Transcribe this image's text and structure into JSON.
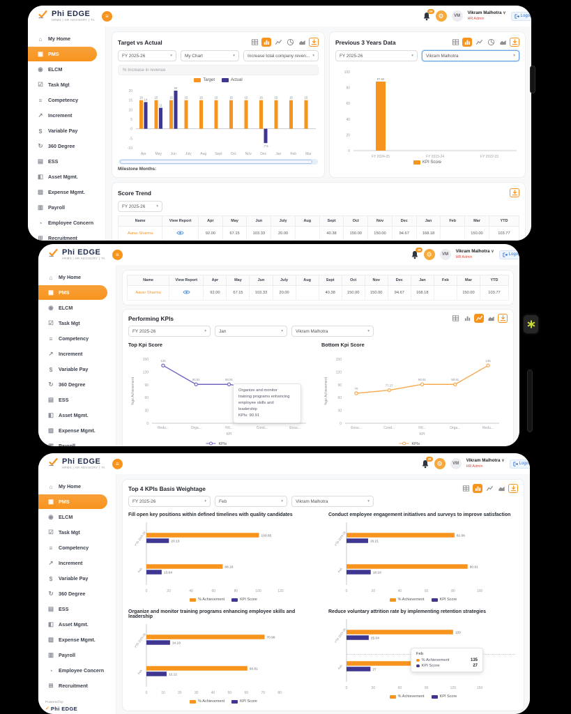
{
  "brand": {
    "name": "Phi EDGE",
    "tagline": "HRMS | HR ADVISORY | TA"
  },
  "header": {
    "notification_count": "29",
    "avatar_initials": "VM",
    "user_name": "Vikram Malhotra",
    "user_role": "HR Admin",
    "logout_label": "Logout"
  },
  "sidebar": {
    "powered_by": "Powered by:",
    "items": [
      {
        "label": "My Home",
        "icon": "home",
        "active": false
      },
      {
        "label": "PMS",
        "icon": "pms",
        "active": true
      },
      {
        "label": "ELCM",
        "icon": "elcm",
        "active": false
      },
      {
        "label": "Task Mgt",
        "icon": "task",
        "active": false
      },
      {
        "label": "Competency",
        "icon": "competency",
        "active": false
      },
      {
        "label": "Increment",
        "icon": "increment",
        "active": false
      },
      {
        "label": "Variable Pay",
        "icon": "variable-pay",
        "active": false
      },
      {
        "label": "360 Degree",
        "icon": "degree-360",
        "active": false
      },
      {
        "label": "ESS",
        "icon": "ess",
        "active": false
      },
      {
        "label": "Asset Mgmt.",
        "icon": "asset",
        "active": false
      },
      {
        "label": "Expense Mgmt.",
        "icon": "expense",
        "active": false
      },
      {
        "label": "Payroll",
        "icon": "payroll",
        "active": false
      },
      {
        "label": "Employee Concern",
        "icon": "concern",
        "active": false
      },
      {
        "label": "Recruitment",
        "icon": "recruitment",
        "active": false
      }
    ]
  },
  "toolbars": {
    "target": [
      "table",
      "bar*",
      "line",
      "pie",
      "area",
      "download!"
    ],
    "previous": [
      "table",
      "bar*",
      "line",
      "pie",
      "area",
      "download!"
    ],
    "performing": [
      "table",
      "bar",
      "line*",
      "area",
      "download!"
    ],
    "weightage": [
      "table",
      "bar*",
      "line",
      "area",
      "download!"
    ],
    "score_trend": [
      "download!"
    ]
  },
  "cards": {
    "target": {
      "title": "Target vs Actual",
      "fy_filter": "FY 2025-26",
      "chart_filter": "My Chart",
      "kpi_filter": "Increase total company reven...",
      "kpi_input": "% Increase in revenue",
      "milestone_label": "Milestone Months:",
      "legend": {
        "target": "Target",
        "actual": "Actual"
      }
    },
    "previous": {
      "title": "Previous 3 Years Data",
      "fy_filter": "FY 2025-26",
      "employee_filter": "Vikram Malhotra",
      "legend": {
        "kpi_score": "KPI Score"
      }
    },
    "score_trend": {
      "title": "Score Trend",
      "fy_filter": "FY 2025-26"
    },
    "performing": {
      "title": "Performing KPIs",
      "fy_filter": "FY 2025-26",
      "month_filter": "Jan",
      "employee_filter": "Vikram Malhotra",
      "top_title": "Top Kpi Score",
      "bottom_title": "Bottom Kpi Score",
      "tooltip": {
        "line1": "Organize and monitor",
        "line2": "training programs enhancing",
        "line3": "employee skills and",
        "line4": "leadership",
        "line5": "KPIs: 90.91"
      }
    },
    "weightage": {
      "title": "Top 4 KPIs Basis Weightage",
      "fy_filter": "FY 2025-26",
      "month_filter": "Feb",
      "employee_filter": "Vikram Malhotra",
      "tooltip": {
        "title": "Feb",
        "row1_label": "% Achievement",
        "row1_value": "135",
        "row2_label": "KPI Score",
        "row2_value": "27"
      },
      "legend": {
        "achievement": "% Achievement",
        "kpi_score": "KPI Score"
      }
    }
  },
  "table": {
    "headers": [
      "Name",
      "View Report",
      "Apr",
      "May",
      "Jun",
      "July",
      "Aug",
      "Sept",
      "Oct",
      "Nov",
      "Dec",
      "Jan",
      "Feb",
      "Mar",
      "YTD"
    ],
    "rows": [
      {
        "name": "Aarav Sharma",
        "values": [
          "92.00",
          "67.15",
          "103.33",
          "20.00",
          "",
          "40.38",
          "150.00",
          "150.00",
          "94.67",
          "168.18",
          "",
          "150.00",
          "103.77"
        ]
      }
    ]
  },
  "colors": {
    "orange": "#F7941D",
    "indigo": "#3E3691",
    "purple_line": "#6F67BE",
    "orange_line": "#F8A84C",
    "role_red": "#E5493D"
  },
  "chart_data": [
    {
      "id": "target_vs_actual",
      "type": "bar",
      "title": "Target vs Actual",
      "categories": [
        "Apr",
        "May",
        "Jun",
        "July",
        "Aug",
        "Sept",
        "Oct",
        "Nov",
        "Dec",
        "Jan",
        "Feb",
        "Mar"
      ],
      "series": [
        {
          "name": "Target",
          "color": "#F7941D",
          "values": [
            15,
            15,
            15,
            15,
            15,
            15,
            15,
            15,
            15,
            15,
            15,
            15
          ]
        },
        {
          "name": "Actual",
          "color": "#3E3691",
          "values": [
            14,
            11,
            20,
            null,
            null,
            null,
            null,
            null,
            -7.5,
            null,
            null,
            null
          ]
        }
      ],
      "ylim": [
        -10,
        20
      ],
      "yticks": [
        -10,
        -5,
        0,
        5,
        10,
        15,
        20
      ],
      "legend_position": "top",
      "grid": false
    },
    {
      "id": "previous_3_years",
      "type": "bar",
      "title": "Previous 3 Years Data",
      "categories": [
        "FY 2024-25",
        "FY 2023-24",
        "FY 2022-23"
      ],
      "series": [
        {
          "name": "KPI Score",
          "color": "#F7941D",
          "values": [
            87.62,
            null,
            null
          ]
        }
      ],
      "ylim": [
        0,
        100
      ],
      "yticks": [
        0,
        20,
        40,
        60,
        80,
        100
      ],
      "legend_position": "bottom",
      "grid": false
    },
    {
      "id": "top_kpi_score",
      "type": "line",
      "title": "Top Kpi Score",
      "color": "#6F67BE",
      "x": [
        "Redu...",
        "Orga...",
        "Fill...",
        "Cond...",
        "Ensu..."
      ],
      "values": [
        135,
        90.91,
        90.91,
        77.27,
        70
      ],
      "labels": [
        "135",
        "90.91",
        "90.91",
        "77.27",
        "70"
      ],
      "ylim": [
        0,
        150
      ],
      "yticks": [
        0,
        30,
        60,
        90,
        120,
        150
      ],
      "ylabel": "%ge Achievement",
      "xlabel": "KPI",
      "legend": "KPIs",
      "legend_position": "bottom"
    },
    {
      "id": "bottom_kpi_score",
      "type": "line",
      "title": "Bottom Kpi Score",
      "color": "#F8A84C",
      "x": [
        "Ensu...",
        "Cond...",
        "Fill...",
        "Orga...",
        "Redu..."
      ],
      "values": [
        70,
        77.27,
        90.91,
        90.91,
        135
      ],
      "labels": [
        "70",
        "77.27",
        "90.91",
        "90.91",
        "135"
      ],
      "ylim": [
        0,
        150
      ],
      "yticks": [
        0,
        30,
        60,
        90,
        120,
        150
      ],
      "ylabel": "%ge Achievement",
      "xlabel": "KPI",
      "legend": "KPIs",
      "legend_position": "bottom"
    },
    {
      "id": "kpi_fill",
      "type": "hbar",
      "title": "Fill open key positions within defined timelines with quality candidates",
      "categories": [
        "YTD 2025-26",
        "Feb"
      ],
      "series": [
        {
          "name": "% Achievement",
          "color": "#F7941D",
          "values": [
            100.65,
            68.18
          ],
          "labels": [
            "100.65",
            "68.18"
          ]
        },
        {
          "name": "KPI Score",
          "color": "#3E3691",
          "values": [
            20.13,
            13.64
          ],
          "labels": [
            "20.13",
            "13.64"
          ]
        }
      ],
      "xticks": [
        0,
        20,
        40,
        60,
        80,
        100,
        120
      ],
      "xmax": 134,
      "legend_position": "bottom"
    },
    {
      "id": "kpi_engagement",
      "type": "hbar",
      "title": "Conduct employee engagement initiatives and surveys to improve satisfaction",
      "categories": [
        "YTD 2025-26",
        "Feb"
      ],
      "series": [
        {
          "name": "% Achievement",
          "color": "#F7941D",
          "values": [
            81.06,
            90.91
          ],
          "labels": [
            "81.06",
            "90.91"
          ]
        },
        {
          "name": "KPI Score",
          "color": "#3E3691",
          "values": [
            16.21,
            18.18
          ],
          "labels": [
            "16.21",
            "18.18"
          ]
        }
      ],
      "xticks": [
        0,
        20,
        40,
        60,
        80,
        100
      ],
      "xmax": 112,
      "legend_position": "bottom"
    },
    {
      "id": "kpi_training",
      "type": "hbar",
      "title": "Organize and monitor training programs enhancing employee skills and leadership",
      "categories": [
        "YTD 2025-26",
        "Feb"
      ],
      "series": [
        {
          "name": "% Achievement",
          "color": "#F7941D",
          "values": [
            70.96,
            60.61
          ],
          "labels": [
            "70.96",
            "60.61"
          ]
        },
        {
          "name": "KPI Score",
          "color": "#3E3691",
          "values": [
            14.19,
            12.12
          ],
          "labels": [
            "14.19",
            "12.12"
          ]
        }
      ],
      "xticks": [
        0,
        10,
        20,
        30,
        40,
        50,
        60,
        70,
        80
      ],
      "xmax": 90,
      "legend_position": "bottom"
    },
    {
      "id": "kpi_attrition",
      "type": "hbar",
      "title": "Reduce voluntary attrition rate by implementing retention strategies",
      "categories": [
        "YTD 2025-26",
        "Feb"
      ],
      "series": [
        {
          "name": "% Achievement",
          "color": "#F7941D",
          "values": [
            120,
            135
          ],
          "labels": [
            "120",
            "135"
          ]
        },
        {
          "name": "KPI Score",
          "color": "#3E3691",
          "values": [
            25.04,
            27
          ],
          "labels": [
            "25.04",
            "27"
          ]
        }
      ],
      "xticks": [
        0,
        30,
        60,
        90,
        120,
        150
      ],
      "xmax": 168,
      "legend_position": "bottom"
    }
  ]
}
